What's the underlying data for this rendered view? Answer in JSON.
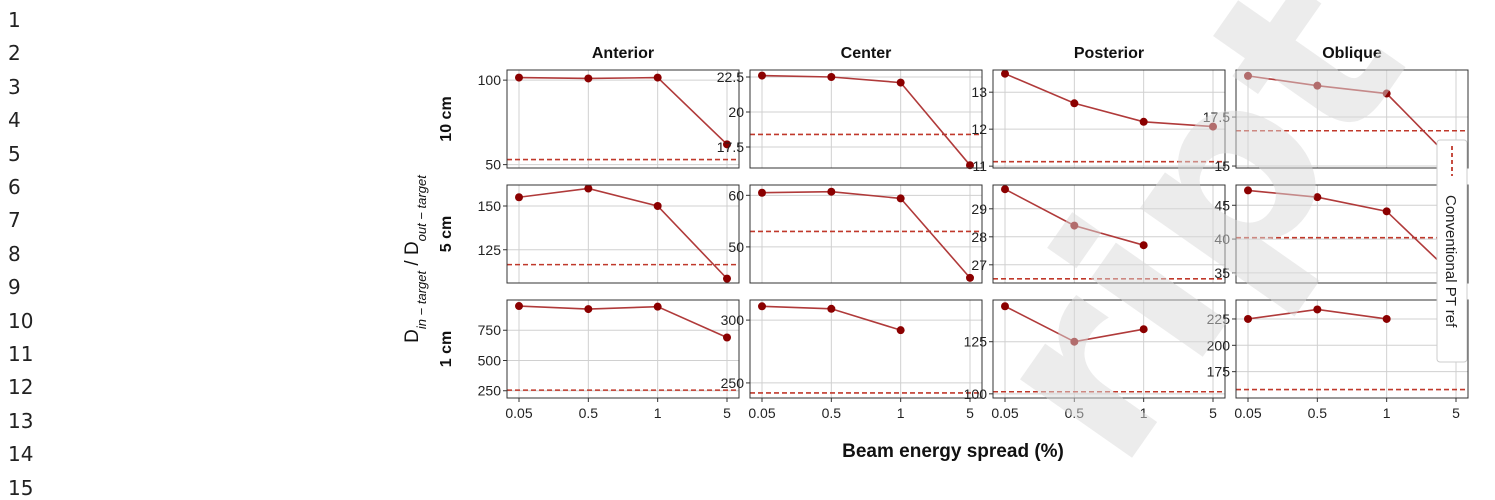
{
  "line_numbers": [
    "1",
    "2",
    "3",
    "4",
    "5",
    "6",
    "7",
    "8",
    "9",
    "10",
    "11",
    "12",
    "13",
    "14",
    "15"
  ],
  "watermark_text": "ript",
  "colors": {
    "series": "#8b0000",
    "reference": "#c0392b",
    "grid": "#d0d0d0",
    "frame": "#333333"
  },
  "chart_data": {
    "type": "line",
    "ylabel_main": "D",
    "ylabel_sub1": "in − target",
    "ylabel_mid": " / D",
    "ylabel_sub2": "out − target",
    "xlabel": "Beam energy spread (%)",
    "x_categories": [
      "0.05",
      "0.5",
      "1",
      "5"
    ],
    "column_titles": [
      "Anterior",
      "Center",
      "Posterior",
      "Oblique"
    ],
    "row_labels": [
      "10 cm",
      "5 cm",
      "1 cm"
    ],
    "legend": {
      "label": "Conventional PT ref",
      "placement": "right",
      "style": "dashed"
    },
    "panels": [
      {
        "row": 0,
        "col": 0,
        "ylim": [
          48,
          106
        ],
        "yticks": [
          50,
          100
        ],
        "values": [
          101.5,
          101.0,
          101.5,
          62.0
        ],
        "ref": 53.0
      },
      {
        "row": 0,
        "col": 1,
        "ylim": [
          16.0,
          23.0
        ],
        "yticks": [
          17.5,
          20.0,
          22.5
        ],
        "values": [
          22.6,
          22.5,
          22.1,
          16.2
        ],
        "ref": 18.4
      },
      {
        "row": 0,
        "col": 2,
        "ylim": [
          10.95,
          13.6
        ],
        "yticks": [
          11,
          12,
          13
        ],
        "values": [
          13.5,
          12.7,
          12.2,
          12.07
        ],
        "ref": 11.12
      },
      {
        "row": 0,
        "col": 3,
        "ylim": [
          14.9,
          19.9
        ],
        "yticks": [
          15.0,
          17.5
        ],
        "values": [
          19.6,
          19.1,
          18.7,
          15.1
        ],
        "ref": 16.8
      },
      {
        "row": 1,
        "col": 0,
        "ylim": [
          106,
          162
        ],
        "yticks": [
          125,
          150
        ],
        "values": [
          155.0,
          160.0,
          150.0,
          108.5
        ],
        "ref": 116.5
      },
      {
        "row": 1,
        "col": 1,
        "ylim": [
          43,
          62
        ],
        "yticks": [
          50,
          60
        ],
        "values": [
          60.5,
          60.7,
          59.4,
          44.0
        ],
        "ref": 53.0
      },
      {
        "row": 1,
        "col": 2,
        "ylim": [
          26.35,
          29.85
        ],
        "yticks": [
          27,
          28,
          29
        ],
        "values": [
          29.7,
          28.4,
          27.7
        ],
        "ref": 26.5
      },
      {
        "row": 1,
        "col": 3,
        "ylim": [
          33.5,
          48.0
        ],
        "yticks": [
          35,
          40,
          45
        ],
        "values": [
          47.2,
          46.2,
          44.1,
          34.3
        ],
        "ref": 40.2
      },
      {
        "row": 2,
        "col": 0,
        "ylim": [
          190,
          1000
        ],
        "yticks": [
          250,
          500,
          750
        ],
        "values": [
          950,
          925,
          945,
          690
        ],
        "ref": 255
      },
      {
        "row": 2,
        "col": 1,
        "ylim": [
          238,
          316
        ],
        "yticks": [
          250,
          300
        ],
        "values": [
          311,
          309,
          292
        ],
        "ref": 242
      },
      {
        "row": 2,
        "col": 2,
        "ylim": [
          98,
          145
        ],
        "yticks": [
          100,
          125
        ],
        "values": [
          142,
          125,
          131
        ],
        "ref": 101
      },
      {
        "row": 2,
        "col": 3,
        "ylim": [
          150,
          243
        ],
        "yticks": [
          175,
          200,
          225
        ],
        "values": [
          225,
          234,
          225
        ],
        "ref": 158
      }
    ]
  }
}
